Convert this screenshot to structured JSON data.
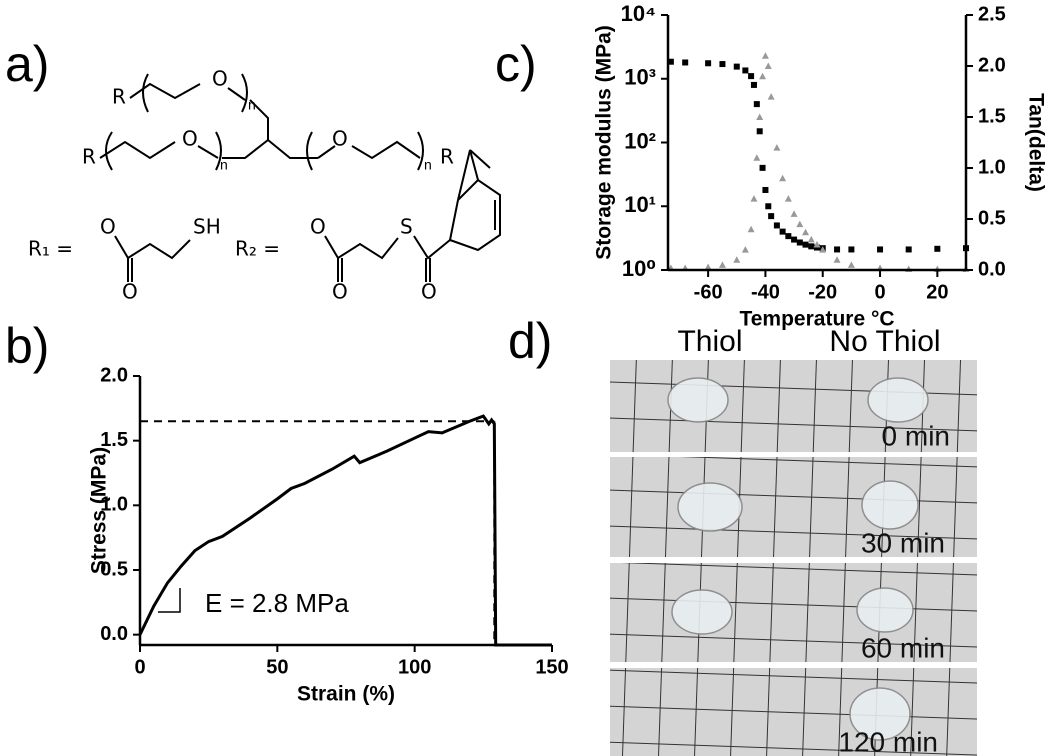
{
  "panels": [
    "a)",
    "b)",
    "c)",
    "d)"
  ],
  "structure": {
    "R": "R",
    "O": "O",
    "n": "n",
    "S": "S",
    "SH": "SH",
    "R1": "R₁ =",
    "R2": "R₂ ="
  },
  "photos": {
    "headers": [
      "Thiol",
      "No Thiol"
    ],
    "times": [
      "0 min",
      "30 min",
      "60 min",
      "120 min"
    ]
  },
  "chart_data": [
    {
      "type": "line",
      "xlabel": "Strain (%)",
      "ylabel": "Stress (MPa)",
      "annotation": "E = 2.8 MPa",
      "x": [
        0,
        5,
        10,
        15,
        20,
        25,
        30,
        40,
        50,
        55,
        60,
        70,
        78,
        80,
        90,
        100,
        105,
        110,
        120,
        125,
        127,
        128,
        129,
        129.5,
        140,
        150
      ],
      "series": [
        {
          "color": "#000000",
          "values": [
            0,
            0.22,
            0.4,
            0.53,
            0.65,
            0.72,
            0.76,
            0.9,
            1.05,
            1.13,
            1.17,
            1.28,
            1.38,
            1.33,
            1.42,
            1.52,
            1.57,
            1.56,
            1.65,
            1.69,
            1.63,
            1.66,
            1.63,
            -0.08,
            -0.08,
            -0.08
          ]
        }
      ],
      "reference_lines": {
        "x": 129,
        "y": 1.65
      },
      "xlim": [
        0,
        150
      ],
      "ylim": [
        -0.08,
        2.0
      ],
      "xticks": [
        0,
        50,
        100,
        150
      ],
      "yticks": [
        {
          "value": 0,
          "label": "0.0"
        },
        0.5,
        {
          "value": 1,
          "label": "1.0"
        },
        1.5,
        {
          "value": 2,
          "label": "2.0"
        }
      ]
    },
    {
      "type": "scatter",
      "xlabel": "Temperature °C",
      "ylabel": "Storage modulus (MPa)",
      "y2label": "Tan(delta)",
      "x": [
        -73,
        -68,
        -60,
        -55,
        -50,
        -47,
        -45,
        -44,
        -43,
        -42,
        -41,
        -40,
        -39,
        -38,
        -36,
        -34,
        -32,
        -30,
        -28,
        -26,
        -24,
        -22,
        -20,
        -15,
        -10,
        0,
        10,
        20,
        30
      ],
      "series": [
        {
          "color": "#000000",
          "marker": "square",
          "values": [
            1850,
            1800,
            1750,
            1700,
            1550,
            1350,
            1100,
            800,
            400,
            150,
            40,
            18,
            10,
            7,
            5,
            4,
            3.4,
            3,
            2.7,
            2.5,
            2.35,
            2.25,
            2.2,
            2.1,
            2.1,
            2.1,
            2.1,
            2.15,
            2.2
          ]
        },
        {
          "color": "#999999",
          "marker": "triangle",
          "axis": "y2",
          "values": [
            0.02,
            0.02,
            0.03,
            0.05,
            0.1,
            0.2,
            0.4,
            0.7,
            1.1,
            1.5,
            1.9,
            2.1,
            2.0,
            1.7,
            1.2,
            0.9,
            0.7,
            0.55,
            0.45,
            0.37,
            0.3,
            0.25,
            0.2,
            0.1,
            0.05,
            0.02,
            0.01,
            0.01,
            0.01
          ]
        }
      ],
      "xlim": [
        -74,
        30
      ],
      "ylim": [
        1,
        10000
      ],
      "ylog": true,
      "y2lim": [
        0,
        2.5
      ],
      "xticks": [
        -60,
        -40,
        -20,
        0,
        20
      ],
      "yticks": [
        {
          "value": 1,
          "label": "10⁰"
        },
        {
          "value": 10,
          "label": "10¹"
        },
        {
          "value": 100,
          "label": "10²"
        },
        {
          "value": 1000,
          "label": "10³"
        },
        {
          "value": 10000,
          "label": "10⁴"
        }
      ],
      "y2ticks": [
        {
          "value": 0,
          "label": "0.0"
        },
        0.5,
        {
          "value": 1,
          "label": "1.0"
        },
        1.5,
        {
          "value": 2,
          "label": "2.0"
        },
        2.5
      ]
    }
  ]
}
